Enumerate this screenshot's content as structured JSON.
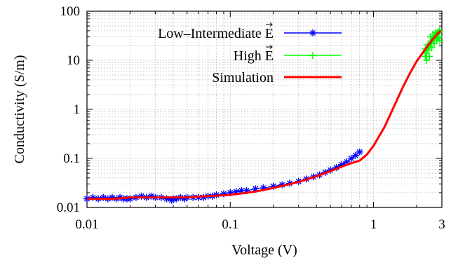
{
  "chart_data": {
    "type": "scatter",
    "xlabel": "Voltage (V)",
    "ylabel": "Conductivity (S/m)",
    "xscale": "log",
    "yscale": "log",
    "xlim": [
      0.01,
      3
    ],
    "ylim": [
      0.01,
      100
    ],
    "grid": "major-minor dotted",
    "legend_position": "top-left",
    "x_ticks": [
      {
        "value": 0.01,
        "label": "0.01"
      },
      {
        "value": 0.1,
        "label": "0.1"
      },
      {
        "value": 1,
        "label": "1"
      },
      {
        "value": 3,
        "label": "3"
      }
    ],
    "y_ticks": [
      {
        "value": 0.01,
        "label": "0.01"
      },
      {
        "value": 0.1,
        "label": "0.1"
      },
      {
        "value": 1,
        "label": "1"
      },
      {
        "value": 10,
        "label": "10"
      },
      {
        "value": 100,
        "label": "100"
      }
    ],
    "series": [
      {
        "name": "Low–Intermediate E",
        "name_vector_letter": "E",
        "color": "#0000ff",
        "marker": "star",
        "x": [
          0.01,
          0.011,
          0.012,
          0.013,
          0.014,
          0.015,
          0.016,
          0.017,
          0.018,
          0.019,
          0.02,
          0.022,
          0.024,
          0.026,
          0.028,
          0.03,
          0.033,
          0.036,
          0.039,
          0.04,
          0.042,
          0.045,
          0.048,
          0.05,
          0.055,
          0.06,
          0.065,
          0.07,
          0.075,
          0.08,
          0.09,
          0.1,
          0.11,
          0.12,
          0.13,
          0.15,
          0.17,
          0.2,
          0.23,
          0.26,
          0.3,
          0.34,
          0.38,
          0.42,
          0.46,
          0.5,
          0.55,
          0.6,
          0.65,
          0.7,
          0.75,
          0.8
        ],
        "y": [
          0.015,
          0.016,
          0.015,
          0.016,
          0.015,
          0.016,
          0.015,
          0.016,
          0.015,
          0.015,
          0.015,
          0.016,
          0.017,
          0.016,
          0.017,
          0.016,
          0.016,
          0.015,
          0.014,
          0.015,
          0.015,
          0.016,
          0.015,
          0.016,
          0.016,
          0.016,
          0.016,
          0.017,
          0.017,
          0.018,
          0.019,
          0.02,
          0.021,
          0.022,
          0.022,
          0.024,
          0.025,
          0.027,
          0.029,
          0.031,
          0.034,
          0.038,
          0.042,
          0.046,
          0.052,
          0.058,
          0.065,
          0.075,
          0.085,
          0.1,
          0.115,
          0.135
        ]
      },
      {
        "name": "High E",
        "name_vector_letter": "E",
        "color": "#00ff00",
        "marker": "plus",
        "x": [
          2.3,
          2.35,
          2.4,
          2.45,
          2.5,
          2.55,
          2.6,
          2.65,
          2.7,
          2.75,
          2.8,
          2.85,
          2.9,
          2.3,
          2.4,
          2.5,
          2.6,
          2.7,
          2.8,
          2.9,
          2.35,
          2.45,
          2.55,
          2.65,
          2.75,
          2.85
        ],
        "y": [
          12,
          14,
          16,
          19,
          22,
          25,
          27,
          29,
          31,
          33,
          36,
          38,
          40,
          17,
          21,
          30,
          34,
          37,
          28,
          25,
          10,
          12,
          18,
          22,
          25,
          30
        ]
      },
      {
        "name": "Simulation",
        "color": "#ff0000",
        "marker": "none",
        "x": [
          0.01,
          0.015,
          0.02,
          0.03,
          0.05,
          0.07,
          0.1,
          0.15,
          0.2,
          0.3,
          0.4,
          0.5,
          0.6,
          0.7,
          0.8,
          0.9,
          1.0,
          1.2,
          1.4,
          1.6,
          1.8,
          2.0,
          2.2,
          2.4,
          2.6,
          2.8,
          2.95
        ],
        "y": [
          0.015,
          0.015,
          0.016,
          0.016,
          0.016,
          0.017,
          0.018,
          0.021,
          0.025,
          0.033,
          0.043,
          0.055,
          0.068,
          0.08,
          0.09,
          0.12,
          0.18,
          0.45,
          1.2,
          2.8,
          5.5,
          9.5,
          14.0,
          20.0,
          27.0,
          35.0,
          40.0
        ]
      }
    ]
  }
}
